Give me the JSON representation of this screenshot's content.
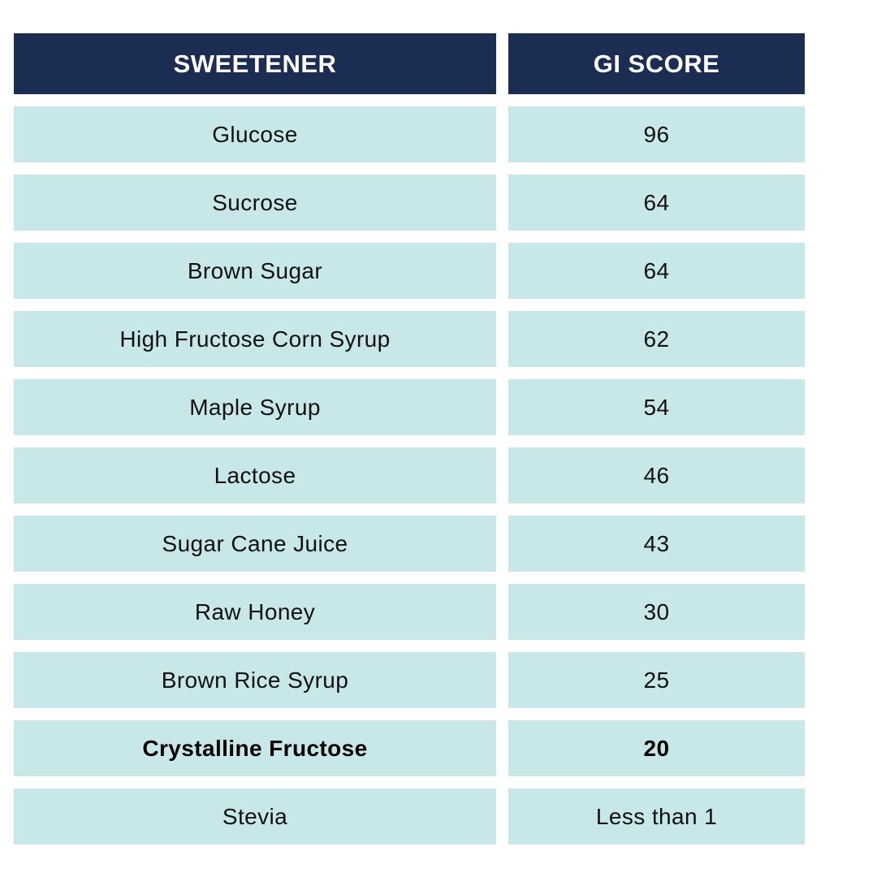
{
  "table": {
    "headers": [
      "SWEETENER",
      "GI SCORE"
    ],
    "rows": [
      {
        "sweetener": "Glucose",
        "gi_score": "96"
      },
      {
        "sweetener": "Sucrose",
        "gi_score": "64"
      },
      {
        "sweetener": "Brown Sugar",
        "gi_score": "64"
      },
      {
        "sweetener": "High Fructose Corn Syrup",
        "gi_score": "62"
      },
      {
        "sweetener": "Maple Syrup",
        "gi_score": "54"
      },
      {
        "sweetener": "Lactose",
        "gi_score": "46"
      },
      {
        "sweetener": "Sugar Cane Juice",
        "gi_score": "43"
      },
      {
        "sweetener": "Raw Honey",
        "gi_score": "30"
      },
      {
        "sweetener": "Brown Rice Syrup",
        "gi_score": "25"
      },
      {
        "sweetener": "Crystalline Fructose",
        "gi_score": "20",
        "highlighted": true
      },
      {
        "sweetener": "Stevia",
        "gi_score": "Less than 1"
      }
    ]
  },
  "colors": {
    "header_background": "#1b2d52",
    "header_text": "#ffffff",
    "row_background": "#c8e7e9",
    "row_text": "#111111"
  },
  "chart_data": {
    "type": "table",
    "columns": [
      "SWEETENER",
      "GI SCORE"
    ],
    "rows": [
      [
        "Glucose",
        "96"
      ],
      [
        "Sucrose",
        "64"
      ],
      [
        "Brown Sugar",
        "64"
      ],
      [
        "High Fructose Corn Syrup",
        "62"
      ],
      [
        "Maple Syrup",
        "54"
      ],
      [
        "Lactose",
        "46"
      ],
      [
        "Sugar Cane Juice",
        "43"
      ],
      [
        "Raw Honey",
        "30"
      ],
      [
        "Brown Rice Syrup",
        "25"
      ],
      [
        "Crystalline Fructose",
        "20"
      ],
      [
        "Stevia",
        "Less than 1"
      ]
    ],
    "title": "",
    "legend": "none",
    "grid": false
  }
}
